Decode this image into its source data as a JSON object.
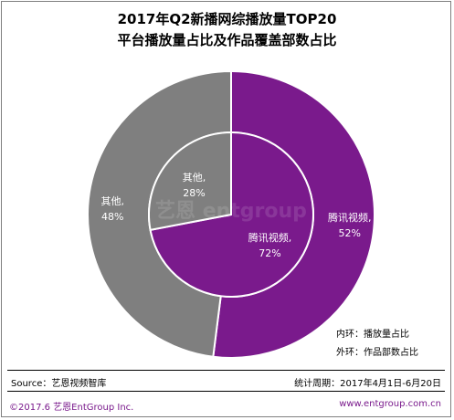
{
  "title_line1": "2017年Q2新播网综播放量TOP20",
  "title_line2": "平台播放量占比及作品覆盖部数占比",
  "chart_data": {
    "type": "pie",
    "rings": [
      {
        "ring": "inner",
        "legend": "内环：播放量占比",
        "slices": [
          {
            "label": "腾讯视频,",
            "pct_text": "72%",
            "value": 72,
            "color": "#7a1a8c"
          },
          {
            "label": "其他,",
            "pct_text": "28%",
            "value": 28,
            "color": "#7f7f7f"
          }
        ]
      },
      {
        "ring": "outer",
        "legend": "外环：作品部数占比",
        "slices": [
          {
            "label": "腾讯视频,",
            "pct_text": "52%",
            "value": 52,
            "color": "#7a1a8c"
          },
          {
            "label": "其他,",
            "pct_text": "48%",
            "value": 48,
            "color": "#7f7f7f"
          }
        ]
      }
    ],
    "watermark": "艺恩 entgroup"
  },
  "footer": {
    "source": "Source：艺恩视频智库",
    "period": "统计周期：2017年4月1日-6月20日",
    "copyright": "©2017.6 艺恩EntGroup Inc.",
    "url": "www.entgroup.com.cn"
  }
}
